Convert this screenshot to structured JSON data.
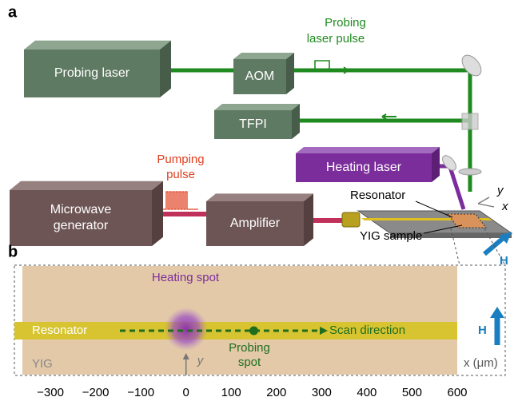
{
  "panel_a": {
    "label": "a",
    "probing_laser": "Probing laser",
    "aom": "AOM",
    "tfpi": "TFPI",
    "heating_laser": "Heating laser",
    "microwave_generator": [
      "Microwave",
      "generator"
    ],
    "amplifier": "Amplifier",
    "probing_pulse": [
      "Probing",
      "laser pulse"
    ],
    "pumping_pulse": [
      "Pumping",
      "pulse"
    ],
    "resonator": "Resonator",
    "yig_sample": "YIG sample",
    "field": "H",
    "axis_x": "x",
    "axis_y": "y"
  },
  "panel_b": {
    "label": "b",
    "heating_spot": "Heating spot",
    "resonator": "Resonator",
    "scan_direction": "Scan direction",
    "probing_spot": [
      "Probing",
      "spot"
    ],
    "yig": "YIG",
    "axis_y": "y",
    "field": "H",
    "x_axis_label": "x (μm)",
    "xlim": [
      -362,
      600
    ],
    "xticks": [
      {
        "value": -300,
        "label": "−300"
      },
      {
        "value": -200,
        "label": "−200"
      },
      {
        "value": -100,
        "label": "−100"
      },
      0,
      100,
      200,
      300,
      400,
      500,
      600
    ],
    "heating_spot_x": 0,
    "probing_spot_x": 150
  }
}
